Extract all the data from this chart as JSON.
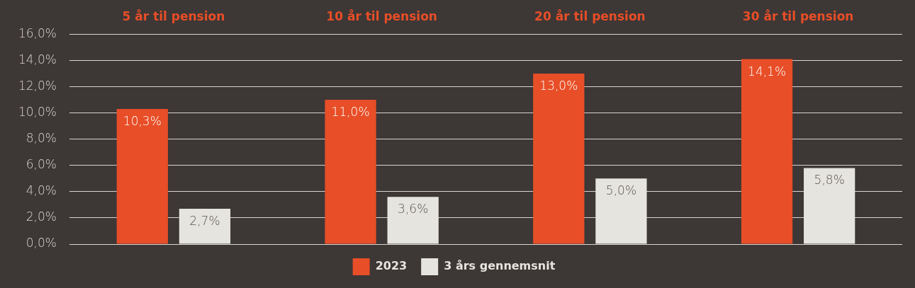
{
  "chart_data": {
    "type": "bar",
    "categories": [
      "5 år til pension",
      "10 år til pension",
      "20 år til pension",
      "30 år til pension"
    ],
    "series": [
      {
        "name": "2023",
        "color": "#e84e27",
        "values": [
          10.3,
          11.0,
          13.0,
          14.1
        ],
        "value_labels": [
          "10,3%",
          "11,0%",
          "13,0%",
          "14,1%"
        ]
      },
      {
        "name": "3 års gennemsnit",
        "color": "#e6e4df",
        "values": [
          2.7,
          3.6,
          5.0,
          5.8
        ],
        "value_labels": [
          "2,7%",
          "3,6%",
          "5,0%",
          "5,8%"
        ]
      }
    ],
    "ylim": [
      0,
      16
    ],
    "yticks": [
      {
        "value": 0,
        "label": "0,0%"
      },
      {
        "value": 2,
        "label": "2,0%"
      },
      {
        "value": 4,
        "label": "4,0%"
      },
      {
        "value": 6,
        "label": "6,0%"
      },
      {
        "value": 8,
        "label": "8,0%"
      },
      {
        "value": 10,
        "label": "10,0%"
      },
      {
        "value": 12,
        "label": "12,0%"
      },
      {
        "value": 14,
        "label": "14,0%"
      },
      {
        "value": 16,
        "label": "16,0%"
      }
    ],
    "grid": "y",
    "legend": "bottom"
  }
}
